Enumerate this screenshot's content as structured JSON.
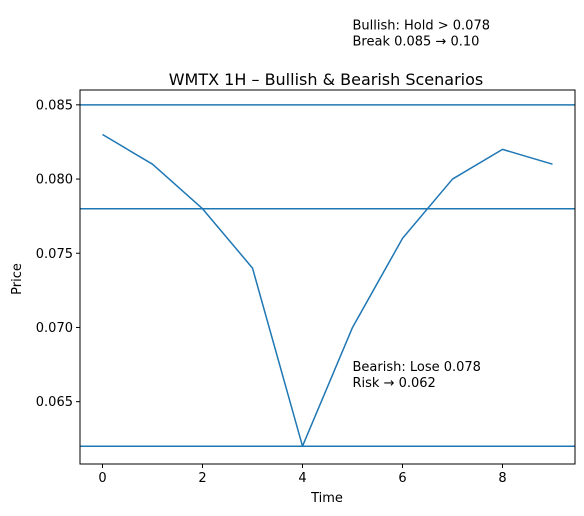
{
  "chart_data": {
    "type": "line",
    "title": "WMTX 1H – Bullish & Bearish Scenarios",
    "xlabel": "Time",
    "ylabel": "Price",
    "xlim": [
      -0.45,
      9.45
    ],
    "ylim": [
      0.0608,
      0.086
    ],
    "grid": false,
    "line_color": "#1f77b4",
    "x_ticks": [
      0,
      2,
      4,
      6,
      8
    ],
    "x_tick_labels": [
      "0",
      "2",
      "4",
      "6",
      "8"
    ],
    "y_ticks": [
      0.065,
      0.07,
      0.075,
      0.08,
      0.085
    ],
    "y_tick_labels": [
      "0.065",
      "0.070",
      "0.075",
      "0.080",
      "0.085"
    ],
    "series": [
      {
        "x": [
          0,
          1,
          2,
          3,
          4,
          5,
          6,
          7,
          8,
          9
        ],
        "values": [
          0.083,
          0.081,
          0.078,
          0.074,
          0.062,
          0.07,
          0.076,
          0.08,
          0.082,
          0.081
        ]
      }
    ],
    "hlines": [
      0.085,
      0.078,
      0.062
    ],
    "annotations": [
      {
        "x": 5,
        "y": 0.089,
        "lines": [
          "Bullish: Hold > 0.078",
          "Break 0.085 → 0.10"
        ]
      },
      {
        "x": 5,
        "y": 0.066,
        "lines": [
          "Bearish: Lose 0.078",
          "Risk → 0.062"
        ]
      }
    ]
  }
}
